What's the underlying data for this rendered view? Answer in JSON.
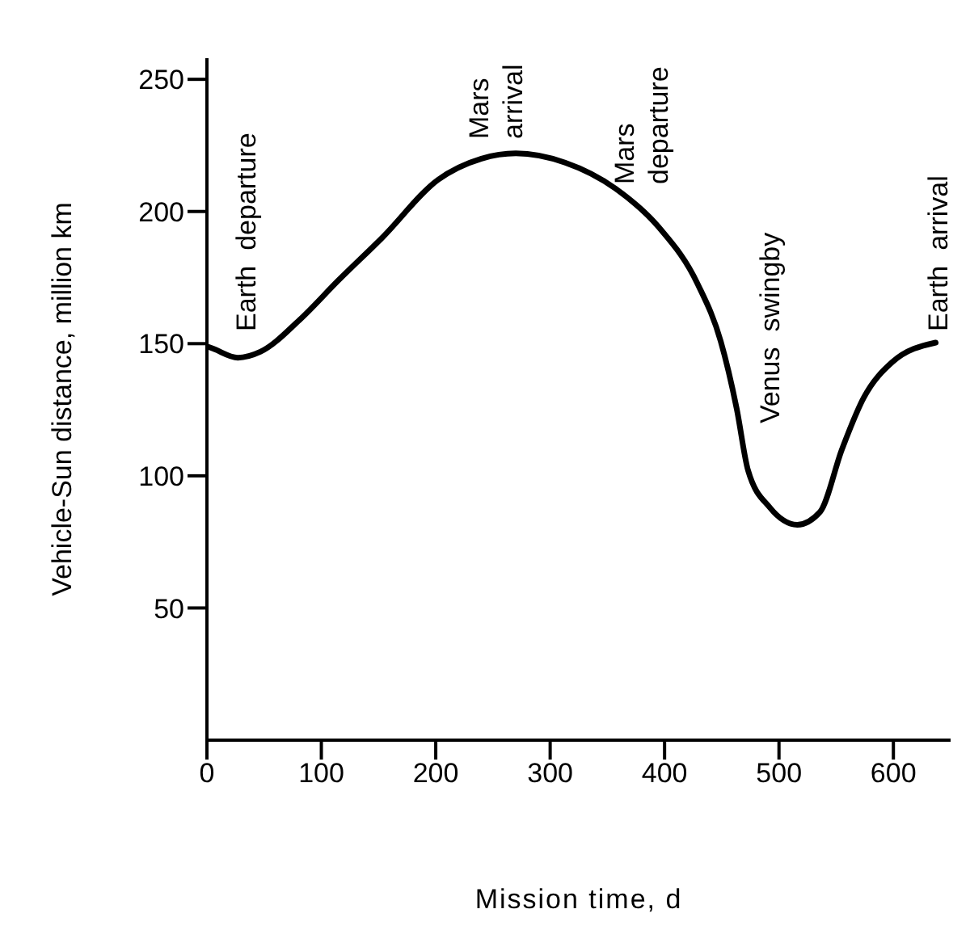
{
  "chart_data": {
    "type": "line",
    "xlabel": "Mission time, d",
    "ylabel": "Vehicle-Sun distance,  million  km",
    "xlim": [
      0,
      650
    ],
    "xticks": [
      0,
      100,
      200,
      300,
      400,
      500,
      600
    ],
    "ylim": [
      0,
      258
    ],
    "yticks": [
      50,
      100,
      150,
      200,
      250
    ],
    "marker": "none",
    "line_style": "solid",
    "series": [
      {
        "color": "#000000",
        "x": [
          0,
          6,
          27,
          47,
          81,
          115,
          153,
          202,
          240,
          270,
          313,
          357,
          395,
          429,
          449,
          463,
          473,
          492,
          516,
          536,
          555,
          574,
          599,
          637
        ],
        "values": [
          149,
          148,
          144.7,
          147,
          159,
          174,
          190,
          212,
          220,
          222,
          218.5,
          208.7,
          194,
          172.5,
          151,
          125.5,
          102,
          88,
          81.5,
          86.4,
          110,
          129.5,
          143,
          150.4
        ]
      }
    ],
    "annotations": [
      "Earth  departure",
      "Mars\narrival",
      "Mars\ndeparture",
      "Venus  swingby",
      "Earth  arrival"
    ]
  }
}
